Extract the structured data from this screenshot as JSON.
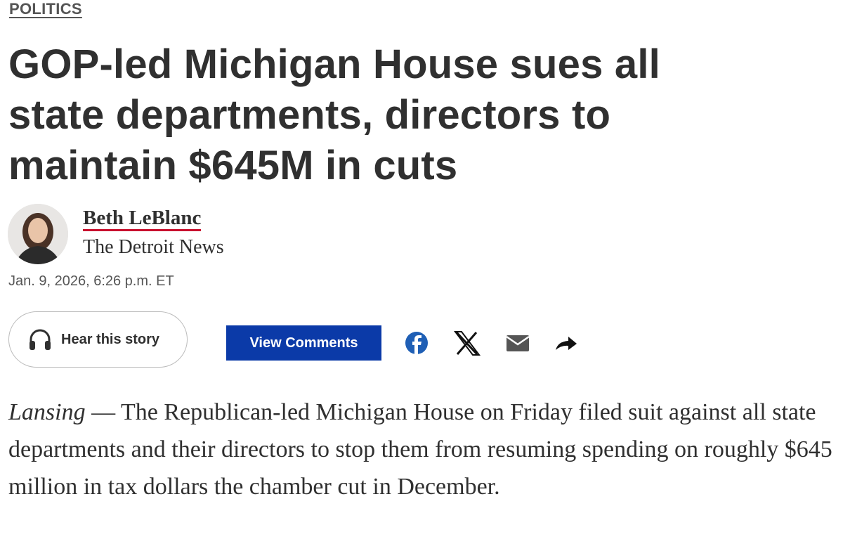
{
  "section": "POLITICS",
  "headline": "GOP-led Michigan House sues all state departments, directors to maintain $645M in cuts",
  "byline": {
    "author": "Beth LeBlanc",
    "outlet": "The Detroit News",
    "date": "Jan. 9, 2026, 6:26 p.m. ET"
  },
  "actions": {
    "listen": "Hear this story",
    "comments": "View Comments"
  },
  "article": {
    "dateline": "Lansing",
    "text": " — The Republican-led Michigan House on Friday filed suit against all state departments and their directors to stop them from resuming spending on roughly $645 million in tax dollars the chamber cut in December."
  }
}
